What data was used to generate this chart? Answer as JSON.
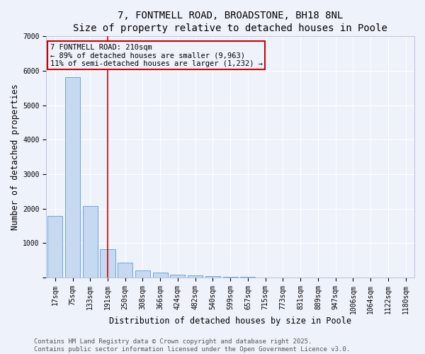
{
  "title": "7, FONTMELL ROAD, BROADSTONE, BH18 8NL",
  "subtitle": "Size of property relative to detached houses in Poole",
  "xlabel": "Distribution of detached houses by size in Poole",
  "ylabel": "Number of detached properties",
  "categories": [
    "17sqm",
    "75sqm",
    "133sqm",
    "191sqm",
    "250sqm",
    "308sqm",
    "366sqm",
    "424sqm",
    "482sqm",
    "540sqm",
    "599sqm",
    "657sqm",
    "715sqm",
    "773sqm",
    "831sqm",
    "889sqm",
    "947sqm",
    "1006sqm",
    "1064sqm",
    "1122sqm",
    "1180sqm"
  ],
  "values": [
    1780,
    5820,
    2080,
    820,
    430,
    200,
    145,
    90,
    60,
    45,
    30,
    15,
    0,
    0,
    0,
    0,
    0,
    0,
    0,
    0,
    0
  ],
  "bar_color": "#c6d9f0",
  "bar_edgecolor": "#5b9bd5",
  "vline_x_index": 3,
  "vline_color": "#cc0000",
  "annotation_line1": "7 FONTMELL ROAD: 210sqm",
  "annotation_line2": "← 89% of detached houses are smaller (9,963)",
  "annotation_line3": "11% of semi-detached houses are larger (1,232) →",
  "annotation_box_color": "#cc0000",
  "ylim": [
    0,
    7000
  ],
  "yticks": [
    0,
    1000,
    2000,
    3000,
    4000,
    5000,
    6000,
    7000
  ],
  "background_color": "#eef2fb",
  "grid_color": "#ffffff",
  "footer": "Contains HM Land Registry data © Crown copyright and database right 2025.\nContains public sector information licensed under the Open Government Licence v3.0.",
  "title_fontsize": 10,
  "xlabel_fontsize": 8.5,
  "ylabel_fontsize": 8.5,
  "tick_fontsize": 7,
  "footer_fontsize": 6.5,
  "annotation_fontsize": 7.5
}
